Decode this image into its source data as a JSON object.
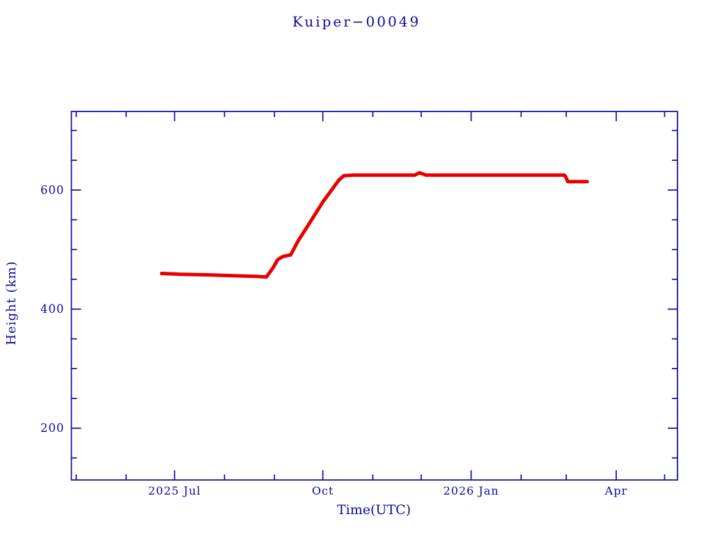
{
  "title": "Kuiper−00049",
  "colors": {
    "axis": "#0a0aa0",
    "series": "#e80000",
    "background": "#ffffff"
  },
  "chart_data": {
    "type": "line",
    "title": "Kuiper−00049",
    "xlabel": "Time(UTC)",
    "ylabel": "Height (km)",
    "x_range": [
      "2025-04-28",
      "2026-05-09"
    ],
    "y_range": [
      113,
      732
    ],
    "y_unit": "km",
    "grid": false,
    "legend": "none",
    "x_ticks": [
      {
        "date": "2025-05-01",
        "major": false
      },
      {
        "date": "2025-06-01",
        "major": false
      },
      {
        "date": "2025-07-01",
        "major": true,
        "label": "2025 Jul"
      },
      {
        "date": "2025-08-01",
        "major": false
      },
      {
        "date": "2025-09-01",
        "major": false
      },
      {
        "date": "2025-10-01",
        "major": true,
        "label": "Oct"
      },
      {
        "date": "2025-11-01",
        "major": false
      },
      {
        "date": "2025-12-01",
        "major": false
      },
      {
        "date": "2026-01-01",
        "major": true,
        "label": "2026 Jan"
      },
      {
        "date": "2026-02-01",
        "major": false
      },
      {
        "date": "2026-03-01",
        "major": false
      },
      {
        "date": "2026-04-01",
        "major": true,
        "label": "Apr"
      },
      {
        "date": "2026-05-01",
        "major": false
      }
    ],
    "y_ticks": [
      {
        "value": 150,
        "major": false
      },
      {
        "value": 200,
        "major": true,
        "label": "200"
      },
      {
        "value": 250,
        "major": false
      },
      {
        "value": 300,
        "major": false
      },
      {
        "value": 350,
        "major": false
      },
      {
        "value": 400,
        "major": true,
        "label": "400"
      },
      {
        "value": 450,
        "major": false
      },
      {
        "value": 500,
        "major": false
      },
      {
        "value": 550,
        "major": false
      },
      {
        "value": 600,
        "major": true,
        "label": "600"
      },
      {
        "value": 650,
        "major": false
      },
      {
        "value": 700,
        "major": false
      }
    ],
    "series": [
      {
        "name": "height_km",
        "color": "#e80000",
        "points": [
          [
            "2025-06-23",
            460
          ],
          [
            "2025-07-05",
            458.5
          ],
          [
            "2025-07-22",
            457.5
          ],
          [
            "2025-08-08",
            456
          ],
          [
            "2025-08-21",
            455
          ],
          [
            "2025-08-27",
            454
          ],
          [
            "2025-08-31",
            469
          ],
          [
            "2025-09-03",
            483
          ],
          [
            "2025-09-06",
            488
          ],
          [
            "2025-09-09",
            490
          ],
          [
            "2025-09-11",
            491
          ],
          [
            "2025-09-16",
            516
          ],
          [
            "2025-09-21",
            537
          ],
          [
            "2025-10-01",
            580
          ],
          [
            "2025-10-11",
            617
          ],
          [
            "2025-10-14",
            624
          ],
          [
            "2025-10-20",
            625
          ],
          [
            "2025-11-27",
            625
          ],
          [
            "2025-11-30",
            629
          ],
          [
            "2025-12-02",
            627
          ],
          [
            "2025-12-04",
            625
          ],
          [
            "2026-02-28",
            625
          ],
          [
            "2026-03-01",
            620
          ],
          [
            "2026-03-02",
            614
          ],
          [
            "2026-03-14",
            614
          ]
        ]
      }
    ]
  }
}
